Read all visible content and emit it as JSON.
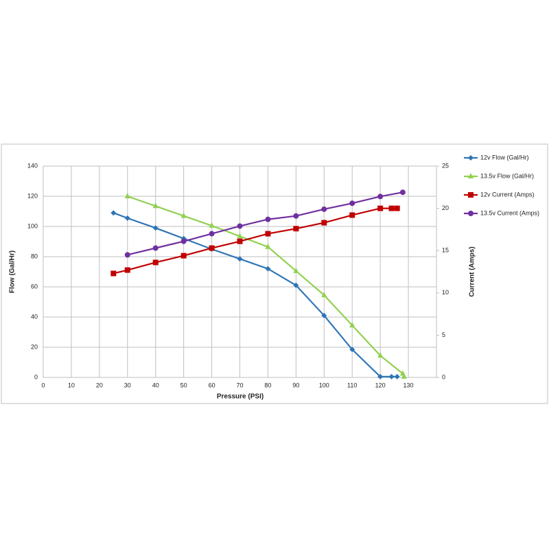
{
  "chart_data": {
    "type": "line",
    "x_label": "Pressure (PSI)",
    "y_label": "Flow (Gal/Hr)",
    "y2_label": "Current (Amps)",
    "xlim": [
      0,
      140
    ],
    "xticks": [
      0,
      10,
      20,
      30,
      40,
      50,
      60,
      70,
      80,
      90,
      100,
      110,
      120,
      130
    ],
    "ylim": [
      0,
      140
    ],
    "yticks": [
      0,
      20,
      40,
      60,
      80,
      100,
      120,
      140
    ],
    "y2lim": [
      0,
      25
    ],
    "y2ticks": [
      0,
      5,
      10,
      15,
      20,
      25
    ],
    "grid": true,
    "legend": "right",
    "series": [
      {
        "name": "12v Flow (Gal/Hr)",
        "color": "#2e75b6",
        "marker": "diamond",
        "x": [
          25,
          30,
          40,
          50,
          60,
          70,
          80,
          90,
          100,
          110,
          120,
          124,
          126
        ],
        "values": [
          109,
          105.5,
          99,
          92,
          85,
          78.5,
          72,
          61,
          41,
          18.5,
          0.5,
          0.5,
          0.5
        ]
      },
      {
        "name": "13.5v Flow (Gal/Hr)",
        "color": "#92d050",
        "marker": "triangle",
        "x": [
          30,
          40,
          50,
          60,
          70,
          80,
          90,
          100,
          110,
          120,
          128,
          128.5
        ],
        "values": [
          120,
          113.5,
          107,
          100.5,
          93.5,
          86.5,
          70.5,
          54.5,
          34.5,
          14.5,
          2.5,
          0.5
        ]
      },
      {
        "name": "12v Current (Amps)",
        "color": "#c00000",
        "marker": "square",
        "axis": "y2",
        "x": [
          25,
          30,
          40,
          50,
          60,
          70,
          80,
          90,
          100,
          110,
          120,
          124,
          126
        ],
        "values": [
          12.3,
          12.7,
          13.6,
          14.4,
          15.3,
          16.1,
          17.0,
          17.6,
          18.3,
          19.2,
          20.0,
          20.0,
          20.0
        ]
      },
      {
        "name": "13.5v Current (Amps)",
        "color": "#7030a0",
        "marker": "circle",
        "axis": "y2",
        "x": [
          30,
          40,
          50,
          60,
          70,
          80,
          90,
          100,
          110,
          120,
          128
        ],
        "values": [
          14.5,
          15.3,
          16.1,
          17.0,
          17.9,
          18.7,
          19.1,
          19.9,
          20.6,
          21.4,
          21.9
        ]
      }
    ]
  }
}
